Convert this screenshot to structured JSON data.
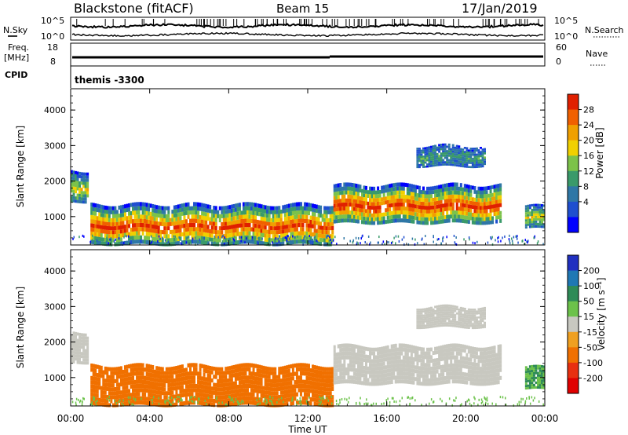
{
  "header": {
    "radar": "Blackstone (fitACF)",
    "beam": "Beam 15",
    "date": "17/Jan/2019"
  },
  "noise_panel": {
    "left_label": "N.Sky",
    "left_ticks": [
      "10^5",
      "10^0"
    ],
    "right_label": "N.Search",
    "right_ticks": [
      "10^5",
      "10^0"
    ]
  },
  "freq_panel": {
    "left_label_1": "Freq.",
    "left_label_2": "[MHz]",
    "left_ticks": [
      "18",
      "8"
    ],
    "right_label": "Nave",
    "right_ticks": [
      "60",
      "0"
    ],
    "cpid_label": "CPID"
  },
  "cpid_panel": {
    "text": "themis -3300"
  },
  "colors": {
    "power": [
      "#0000ff",
      "#1f4fcf",
      "#2f77a6",
      "#3a9a6a",
      "#7cc24a",
      "#f0d000",
      "#f0a000",
      "#f06000",
      "#e02000"
    ],
    "velocity": [
      "#2030c0",
      "#1f78b4",
      "#2e8b57",
      "#6cc24a",
      "#c8c8c0",
      "#f0a020",
      "#f07000",
      "#e83010",
      "#e00000"
    ]
  },
  "chart_data": [
    {
      "type": "heatmap",
      "panel": "power",
      "ylabel": "Slant Range [km]",
      "yticks": [
        "4000",
        "3000",
        "2000",
        "1000"
      ],
      "yrange": [
        200,
        4600
      ],
      "xrange_hours": [
        0,
        24
      ],
      "colorbar_label": "Power [dB]",
      "colorbar_ticks": [
        "28",
        "24",
        "20",
        "16",
        "12",
        "8",
        "4"
      ],
      "scatter_bands": [
        {
          "t_start": 1.0,
          "t_end": 13.3,
          "range_low": 200,
          "range_high": 1350,
          "level": "strong"
        },
        {
          "t_start": 13.3,
          "t_end": 21.8,
          "range_low": 800,
          "range_high": 1900,
          "level": "strong"
        },
        {
          "t_start": 17.5,
          "t_end": 21.0,
          "range_low": 2400,
          "range_high": 3000,
          "level": "weak"
        },
        {
          "t_start": 0.0,
          "t_end": 0.9,
          "range_low": 1400,
          "range_high": 2300,
          "level": "medium"
        },
        {
          "t_start": 23.0,
          "t_end": 24.0,
          "range_low": 650,
          "range_high": 1300,
          "level": "medium"
        }
      ]
    },
    {
      "type": "heatmap",
      "panel": "velocity",
      "ylabel": "Slant Range [km]",
      "yticks": [
        "4000",
        "3000",
        "2000",
        "1000"
      ],
      "yrange": [
        200,
        4600
      ],
      "xrange_hours": [
        0,
        24
      ],
      "xticks": [
        "00:00",
        "04:00",
        "08:00",
        "12:00",
        "16:00",
        "20:00",
        "00:00"
      ],
      "xlabel": "Time UT",
      "colorbar_label": "Velocity [m s⁻¹]",
      "colorbar_ticks": [
        "200",
        "100",
        "50",
        "15",
        "-15",
        "-50",
        "-100",
        "-200"
      ],
      "scatter_bands": [
        {
          "t_start": 1.0,
          "t_end": 13.3,
          "range_low": 200,
          "range_high": 1350,
          "velocity": -50
        },
        {
          "t_start": 13.3,
          "t_end": 21.8,
          "range_low": 800,
          "range_high": 1900,
          "velocity": 0
        },
        {
          "t_start": 17.5,
          "t_end": 21.0,
          "range_low": 2400,
          "range_high": 3000,
          "velocity": 0
        },
        {
          "t_start": 0.0,
          "t_end": 0.9,
          "range_low": 1400,
          "range_high": 2300,
          "velocity": 0
        },
        {
          "t_start": 23.0,
          "t_end": 24.0,
          "range_low": 650,
          "range_high": 1300,
          "velocity": 30
        }
      ]
    }
  ]
}
